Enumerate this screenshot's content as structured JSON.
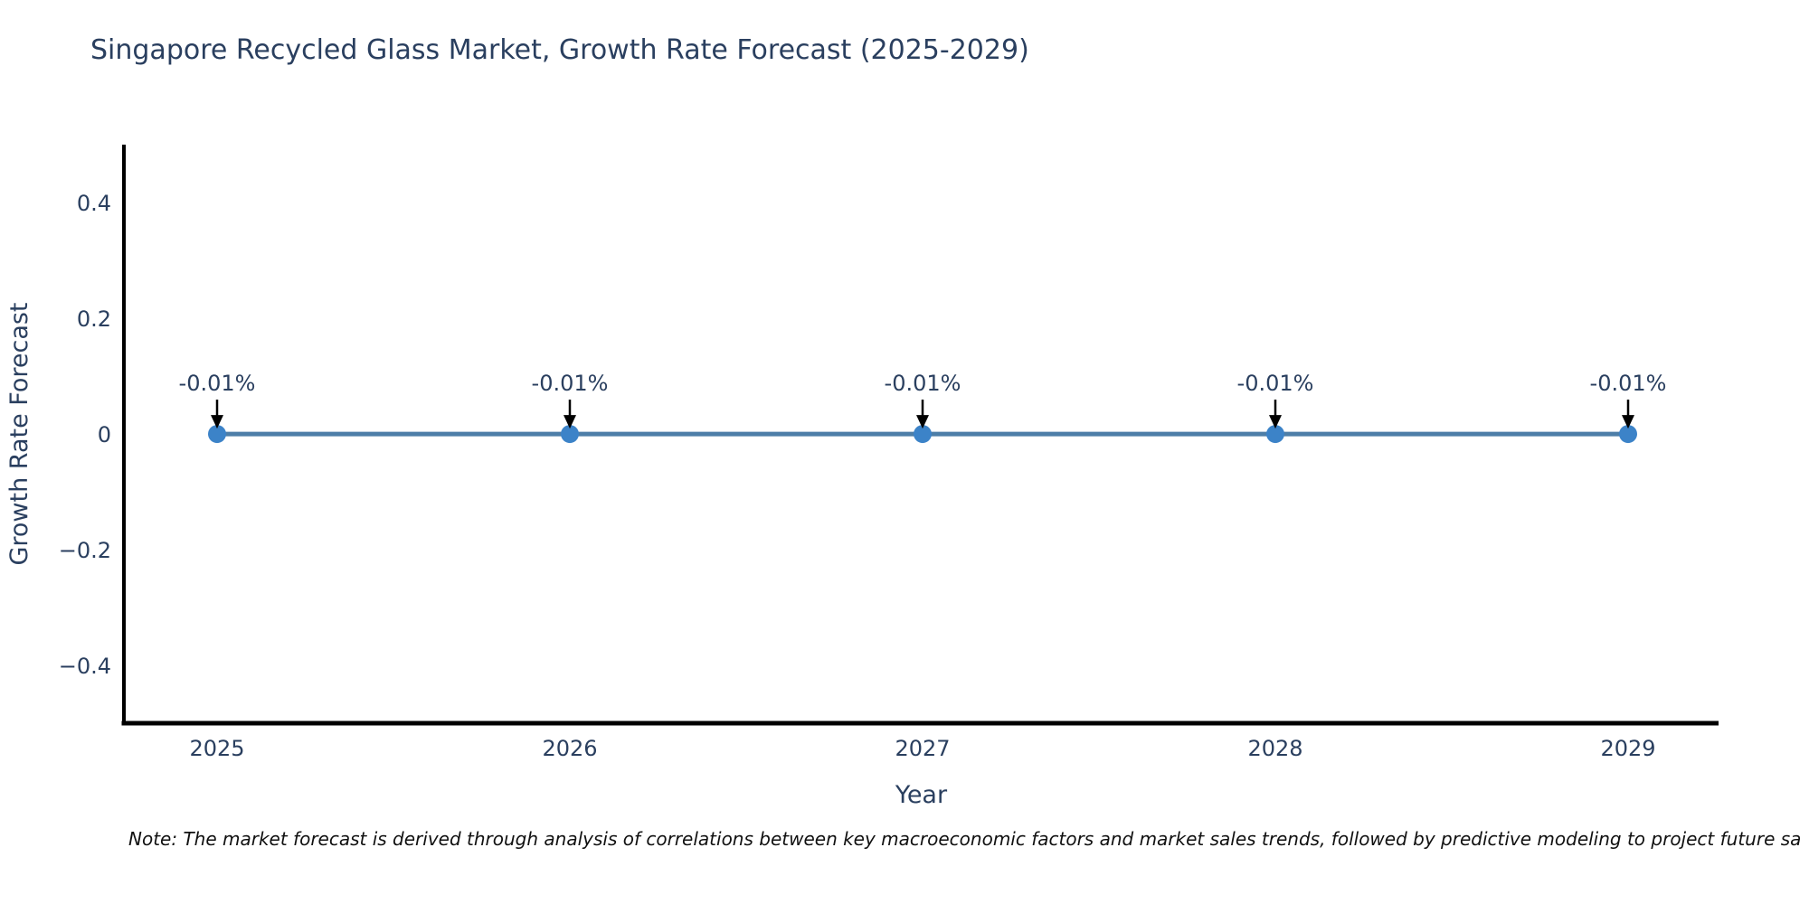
{
  "header": {
    "title": "Singapore Recycled Glass Market, Growth Rate Forecast (2025-2029)"
  },
  "footnote": {
    "text": "Note: The market forecast is derived through analysis of correlations between key macroeconomic factors and market sales trends, followed by predictive modeling to project future sa"
  },
  "chart_data": {
    "type": "line",
    "title": "Singapore Recycled Glass Market, Growth Rate Forecast (2025-2029)",
    "xlabel": "Year",
    "ylabel": "Growth Rate Forecast",
    "x": [
      2025,
      2026,
      2027,
      2028,
      2029
    ],
    "y": [
      -0.0001,
      -0.0001,
      -0.0001,
      -0.0001,
      -0.0001
    ],
    "annotations": [
      "-0.01%",
      "-0.01%",
      "-0.01%",
      "-0.01%",
      "-0.01%"
    ],
    "xtick_labels": [
      "2025",
      "2026",
      "2027",
      "2028",
      "2029"
    ],
    "ytick_values": [
      0.4,
      0.2,
      0,
      -0.2,
      -0.4
    ],
    "ytick_labels": [
      "0.4",
      "0.2",
      "0",
      "−0.2",
      "−0.4"
    ],
    "xlim": [
      2024.74,
      2029.26
    ],
    "ylim": [
      -0.5,
      0.5
    ],
    "grid": false,
    "legend": "none",
    "colors": {
      "text": "#2a3f5f",
      "axis": "#000000",
      "line": "#4d7ea8",
      "marker": "#3c83c8",
      "arrow": "#000000",
      "note": "#111111"
    }
  }
}
